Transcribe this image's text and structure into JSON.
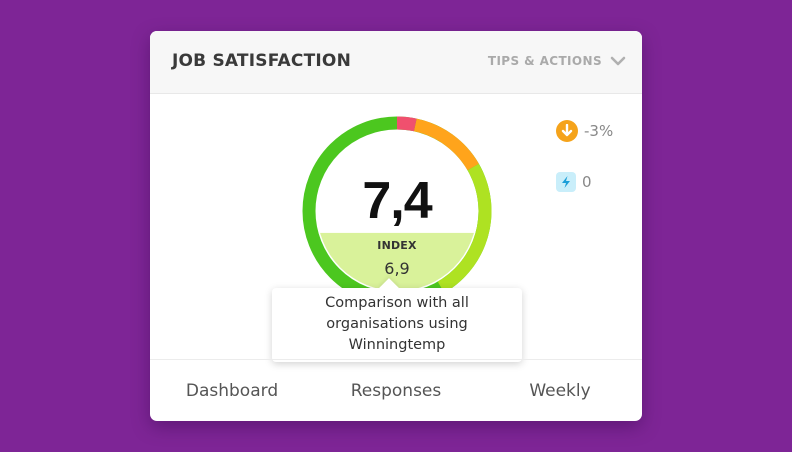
{
  "card": {
    "title": "JOB SATISFACTION",
    "tips_label": "TIPS & ACTIONS",
    "tips_icon": "chevron-down-icon"
  },
  "gauge": {
    "value": "7,4",
    "index_label": "INDEX",
    "comparison_value": "6,9",
    "score_fraction": 0.74,
    "comparison_fraction": 0.69,
    "colors": {
      "green": "#4cc71f",
      "lime": "#aee222",
      "orange": "#ffa41b",
      "red": "#f0506e",
      "fill": "#d9f29a"
    }
  },
  "stats": {
    "trend": {
      "icon": "arrow-down-icon",
      "value": "-3%",
      "color": "#f5a31b"
    },
    "alerts": {
      "icon": "lightning-icon",
      "value": "0",
      "color": "#1b9ed8"
    }
  },
  "tooltip": {
    "text": "Comparison with all organisations using Winningtemp"
  },
  "footer": {
    "tabs": [
      {
        "label": "Dashboard"
      },
      {
        "label": "Responses"
      },
      {
        "label": "Weekly"
      }
    ]
  }
}
